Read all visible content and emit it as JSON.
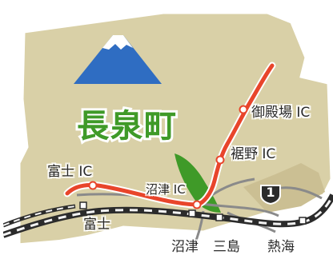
{
  "map": {
    "town_name": "長泉町",
    "colors": {
      "land": "#d9d0a7",
      "land_edge": "#ffffff",
      "sea": "#ffffff",
      "expressway": "#e8452b",
      "railway_dark": "#2b2b2b",
      "railway_light": "#f3f3f3",
      "road": "#8a8a8a",
      "river_green": "#3f9a28",
      "fuji_blue": "#2f6dc2"
    },
    "icons": [
      "mount-fuji-icon",
      "route-1-shield-icon",
      "interchange-marker-icon"
    ],
    "interchanges": [
      {
        "label": "御殿場 IC"
      },
      {
        "label": "裾野 IC"
      },
      {
        "label": "富士 IC"
      },
      {
        "label": "沼津 IC"
      }
    ],
    "places": [
      {
        "label": "富士"
      },
      {
        "label": "沼津"
      },
      {
        "label": "三島"
      },
      {
        "label": "熱海"
      }
    ],
    "route_number": "1"
  }
}
